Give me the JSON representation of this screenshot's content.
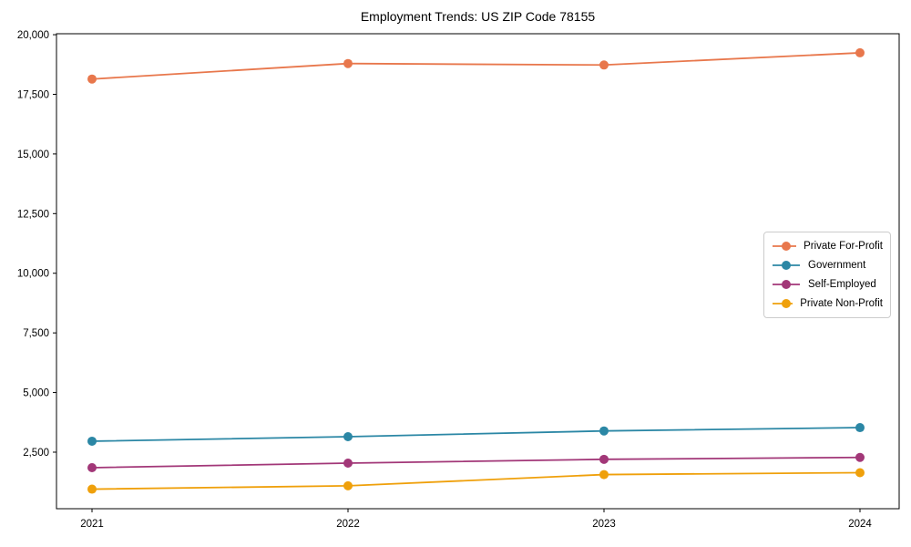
{
  "title": "Employment Trends: US ZIP Code 78155",
  "chart_data": {
    "type": "line",
    "title": "Employment Trends: US ZIP Code 78155",
    "xlabel": "",
    "ylabel": "",
    "x": [
      2021,
      2022,
      2023,
      2024
    ],
    "xticklabels": [
      "2021",
      "2022",
      "2023",
      "2024"
    ],
    "yticks": [
      2500,
      5000,
      7500,
      10000,
      12500,
      15000,
      17500,
      20000
    ],
    "ytick_labels": [
      "2,500",
      "5,000",
      "7,500",
      "10,000",
      "12,500",
      "15,000",
      "17,500",
      "20,000"
    ],
    "ylim": [
      130,
      20040
    ],
    "grid": false,
    "marker": "circle",
    "legend_position": "center-right",
    "series": [
      {
        "name": "Private For-Profit",
        "color": "#e8774c",
        "values": [
          18140,
          18790,
          18730,
          19240
        ]
      },
      {
        "name": "Government",
        "color": "#2b87a5",
        "values": [
          2960,
          3150,
          3390,
          3530
        ]
      },
      {
        "name": "Self-Employed",
        "color": "#a23778",
        "values": [
          1850,
          2040,
          2200,
          2280
        ]
      },
      {
        "name": "Private Non-Profit",
        "color": "#efa00b",
        "values": [
          950,
          1090,
          1560,
          1640
        ]
      }
    ]
  }
}
